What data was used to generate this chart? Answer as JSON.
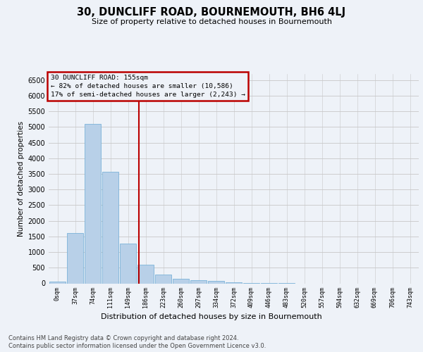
{
  "title": "30, DUNCLIFF ROAD, BOURNEMOUTH, BH6 4LJ",
  "subtitle": "Size of property relative to detached houses in Bournemouth",
  "xlabel": "Distribution of detached houses by size in Bournemouth",
  "ylabel": "Number of detached properties",
  "footnote1": "Contains HM Land Registry data © Crown copyright and database right 2024.",
  "footnote2": "Contains public sector information licensed under the Open Government Licence v3.0.",
  "annotation_line1": "30 DUNCLIFF ROAD: 155sqm",
  "annotation_line2": "← 82% of detached houses are smaller (10,586)",
  "annotation_line3": "17% of semi-detached houses are larger (2,243) →",
  "bar_color": "#b8d0e8",
  "bar_edge_color": "#6aaad4",
  "grid_color": "#c8c8c8",
  "red_line_color": "#bb0000",
  "bg_color": "#eef2f8",
  "categories": [
    "0sqm",
    "37sqm",
    "74sqm",
    "111sqm",
    "149sqm",
    "186sqm",
    "223sqm",
    "260sqm",
    "297sqm",
    "334sqm",
    "372sqm",
    "409sqm",
    "446sqm",
    "483sqm",
    "520sqm",
    "557sqm",
    "594sqm",
    "632sqm",
    "669sqm",
    "706sqm",
    "743sqm"
  ],
  "values": [
    50,
    1600,
    5100,
    3580,
    1280,
    590,
    290,
    145,
    95,
    70,
    28,
    10,
    4,
    1,
    0,
    0,
    0,
    0,
    0,
    0,
    0
  ],
  "red_line_x": 4.62,
  "ylim_max": 6700,
  "yticks": [
    0,
    500,
    1000,
    1500,
    2000,
    2500,
    3000,
    3500,
    4000,
    4500,
    5000,
    5500,
    6000,
    6500
  ]
}
